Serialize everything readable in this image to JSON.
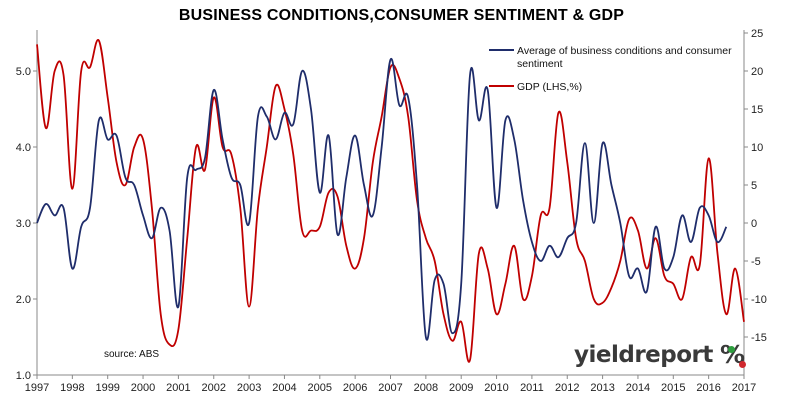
{
  "title": "BUSINESS CONDITIONS,CONSUMER SENTIMENT & GDP",
  "source": "source: ABS",
  "brand": {
    "text": "yieldreport",
    "symbol": "%"
  },
  "colors": {
    "series_blue": "#1f2d6b",
    "series_red": "#c00000",
    "axis": "#888888",
    "brand_green": "#2e9e3e",
    "brand_red": "#d0282e"
  },
  "chart_data": {
    "type": "line",
    "title": "BUSINESS CONDITIONS,CONSUMER SENTIMENT & GDP",
    "x_ticks": [
      "1997",
      "1998",
      "1999",
      "2000",
      "2001",
      "2002",
      "2003",
      "2004",
      "2005",
      "2006",
      "2007",
      "2008",
      "2009",
      "2010",
      "2011",
      "2012",
      "2013",
      "2014",
      "2015",
      "2016",
      "2017"
    ],
    "x_range": [
      1997,
      2017
    ],
    "y_left": {
      "range": [
        1.0,
        5.5
      ],
      "ticks": [
        "1.0",
        "2.0",
        "3.0",
        "4.0",
        "5.0"
      ]
    },
    "y_right": {
      "range": [
        -20,
        25
      ],
      "ticks": [
        "-15",
        "-10",
        "-5",
        "0",
        "5",
        "10",
        "15",
        "20",
        "25"
      ]
    },
    "grid": false,
    "legend_position": "top-right",
    "series": [
      {
        "name": "Average of business conditions and consumer sentiment",
        "axis": "left",
        "color": "#1f2d6b",
        "points": [
          [
            1997.0,
            3.0
          ],
          [
            1997.25,
            3.25
          ],
          [
            1997.5,
            3.1
          ],
          [
            1997.75,
            3.2
          ],
          [
            1998.0,
            2.4
          ],
          [
            1998.25,
            2.95
          ],
          [
            1998.5,
            3.2
          ],
          [
            1998.75,
            4.35
          ],
          [
            1999.0,
            4.1
          ],
          [
            1999.25,
            4.15
          ],
          [
            1999.5,
            3.6
          ],
          [
            1999.75,
            3.5
          ],
          [
            2000.0,
            3.1
          ],
          [
            2000.25,
            2.8
          ],
          [
            2000.5,
            3.2
          ],
          [
            2000.75,
            2.9
          ],
          [
            2001.0,
            1.9
          ],
          [
            2001.25,
            3.6
          ],
          [
            2001.5,
            3.7
          ],
          [
            2001.75,
            3.85
          ],
          [
            2002.0,
            4.75
          ],
          [
            2002.25,
            4.1
          ],
          [
            2002.5,
            3.6
          ],
          [
            2002.75,
            3.5
          ],
          [
            2003.0,
            3.0
          ],
          [
            2003.25,
            4.4
          ],
          [
            2003.5,
            4.4
          ],
          [
            2003.75,
            4.1
          ],
          [
            2004.0,
            4.45
          ],
          [
            2004.25,
            4.3
          ],
          [
            2004.5,
            5.0
          ],
          [
            2004.75,
            4.5
          ],
          [
            2005.0,
            3.4
          ],
          [
            2005.25,
            4.15
          ],
          [
            2005.5,
            2.85
          ],
          [
            2005.75,
            3.6
          ],
          [
            2006.0,
            4.15
          ],
          [
            2006.25,
            3.5
          ],
          [
            2006.5,
            3.1
          ],
          [
            2006.75,
            4.0
          ],
          [
            2007.0,
            5.15
          ],
          [
            2007.25,
            4.55
          ],
          [
            2007.5,
            4.65
          ],
          [
            2007.75,
            3.5
          ],
          [
            2008.0,
            1.5
          ],
          [
            2008.25,
            2.25
          ],
          [
            2008.5,
            2.2
          ],
          [
            2008.75,
            1.55
          ],
          [
            2009.0,
            2.2
          ],
          [
            2009.25,
            4.95
          ],
          [
            2009.5,
            4.35
          ],
          [
            2009.75,
            4.75
          ],
          [
            2010.0,
            3.2
          ],
          [
            2010.25,
            4.35
          ],
          [
            2010.5,
            4.1
          ],
          [
            2010.75,
            3.3
          ],
          [
            2011.0,
            2.75
          ],
          [
            2011.25,
            2.5
          ],
          [
            2011.5,
            2.7
          ],
          [
            2011.75,
            2.55
          ],
          [
            2012.0,
            2.8
          ],
          [
            2012.25,
            3.0
          ],
          [
            2012.5,
            4.05
          ],
          [
            2012.75,
            3.0
          ],
          [
            2013.0,
            4.05
          ],
          [
            2013.25,
            3.5
          ],
          [
            2013.5,
            3.0
          ],
          [
            2013.75,
            2.3
          ],
          [
            2014.0,
            2.4
          ],
          [
            2014.25,
            2.1
          ],
          [
            2014.5,
            2.95
          ],
          [
            2014.75,
            2.4
          ],
          [
            2015.0,
            2.55
          ],
          [
            2015.25,
            3.1
          ],
          [
            2015.5,
            2.75
          ],
          [
            2015.75,
            3.2
          ],
          [
            2016.0,
            3.1
          ],
          [
            2016.25,
            2.75
          ],
          [
            2016.5,
            2.95
          ]
        ]
      },
      {
        "name": "GDP (LHS,%)",
        "axis": "right",
        "color": "#c00000",
        "points": [
          [
            1997.0,
            23.5
          ],
          [
            1997.25,
            12.5
          ],
          [
            1997.5,
            20.0
          ],
          [
            1997.75,
            19.5
          ],
          [
            1998.0,
            4.5
          ],
          [
            1998.25,
            20.0
          ],
          [
            1998.5,
            20.5
          ],
          [
            1998.75,
            24.0
          ],
          [
            1999.0,
            16.5
          ],
          [
            1999.25,
            8.0
          ],
          [
            1999.5,
            5.0
          ],
          [
            1999.75,
            10.0
          ],
          [
            2000.0,
            11.0
          ],
          [
            2000.25,
            2.0
          ],
          [
            2000.5,
            -12.0
          ],
          [
            2000.75,
            -16.0
          ],
          [
            2001.0,
            -14.0
          ],
          [
            2001.25,
            -2.0
          ],
          [
            2001.5,
            10.0
          ],
          [
            2001.75,
            7.0
          ],
          [
            2002.0,
            16.5
          ],
          [
            2002.25,
            10.0
          ],
          [
            2002.5,
            9.0
          ],
          [
            2002.75,
            2.0
          ],
          [
            2003.0,
            -11.0
          ],
          [
            2003.25,
            2.0
          ],
          [
            2003.5,
            10.0
          ],
          [
            2003.75,
            18.0
          ],
          [
            2004.0,
            15.0
          ],
          [
            2004.25,
            9.0
          ],
          [
            2004.5,
            -1.0
          ],
          [
            2004.75,
            -1.0
          ],
          [
            2005.0,
            -0.5
          ],
          [
            2005.25,
            4.0
          ],
          [
            2005.5,
            3.5
          ],
          [
            2005.75,
            -3.0
          ],
          [
            2006.0,
            -6.0
          ],
          [
            2006.25,
            -2.0
          ],
          [
            2006.5,
            8.0
          ],
          [
            2006.75,
            14.0
          ],
          [
            2007.0,
            20.5
          ],
          [
            2007.25,
            19.0
          ],
          [
            2007.5,
            14.0
          ],
          [
            2007.75,
            3.0
          ],
          [
            2008.0,
            -2.0
          ],
          [
            2008.25,
            -5.0
          ],
          [
            2008.5,
            -12.0
          ],
          [
            2008.75,
            -15.5
          ],
          [
            2009.0,
            -13.0
          ],
          [
            2009.25,
            -18.0
          ],
          [
            2009.5,
            -4.0
          ],
          [
            2009.75,
            -6.0
          ],
          [
            2010.0,
            -12.0
          ],
          [
            2010.25,
            -8.0
          ],
          [
            2010.5,
            -3.0
          ],
          [
            2010.75,
            -10.0
          ],
          [
            2011.0,
            -7.0
          ],
          [
            2011.25,
            1.0
          ],
          [
            2011.5,
            2.0
          ],
          [
            2011.75,
            14.5
          ],
          [
            2012.0,
            8.0
          ],
          [
            2012.25,
            -2.0
          ],
          [
            2012.5,
            -5.0
          ],
          [
            2012.75,
            -10.0
          ],
          [
            2013.0,
            -10.5
          ],
          [
            2013.25,
            -8.5
          ],
          [
            2013.5,
            -5.0
          ],
          [
            2013.75,
            0.5
          ],
          [
            2014.0,
            -1.0
          ],
          [
            2014.25,
            -6.0
          ],
          [
            2014.5,
            -2.0
          ],
          [
            2014.75,
            -7.0
          ],
          [
            2015.0,
            -8.0
          ],
          [
            2015.25,
            -10.0
          ],
          [
            2015.5,
            -4.5
          ],
          [
            2015.75,
            -5.5
          ],
          [
            2016.0,
            8.5
          ],
          [
            2016.25,
            -4.0
          ],
          [
            2016.5,
            -12.0
          ],
          [
            2016.75,
            -6.0
          ],
          [
            2017.0,
            -13.0
          ]
        ]
      }
    ],
    "annotations": [
      "source: ABS"
    ]
  }
}
